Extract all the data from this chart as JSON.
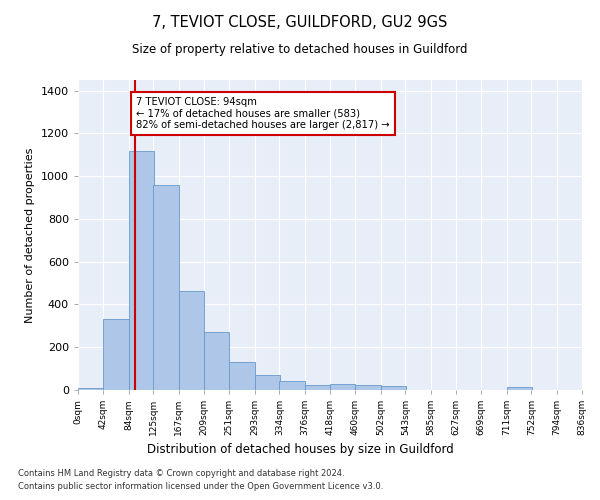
{
  "title": "7, TEVIOT CLOSE, GUILDFORD, GU2 9GS",
  "subtitle": "Size of property relative to detached houses in Guildford",
  "xlabel": "Distribution of detached houses by size in Guildford",
  "ylabel": "Number of detached properties",
  "bar_color": "#aec6e8",
  "bar_edge_color": "#6699cc",
  "background_color": "#e8eef8",
  "grid_color": "#ffffff",
  "marker_color": "#cc0000",
  "marker_value": 94,
  "annotation_text": "7 TEVIOT CLOSE: 94sqm\n← 17% of detached houses are smaller (583)\n82% of semi-detached houses are larger (2,817) →",
  "bin_edges": [
    0,
    42,
    84,
    125,
    167,
    209,
    251,
    293,
    334,
    376,
    418,
    460,
    502,
    543,
    585,
    627,
    669,
    711,
    752,
    794,
    836
  ],
  "bin_labels": [
    "0sqm",
    "42sqm",
    "84sqm",
    "125sqm",
    "167sqm",
    "209sqm",
    "251sqm",
    "293sqm",
    "334sqm",
    "376sqm",
    "418sqm",
    "460sqm",
    "502sqm",
    "543sqm",
    "585sqm",
    "627sqm",
    "669sqm",
    "711sqm",
    "752sqm",
    "794sqm",
    "836sqm"
  ],
  "bar_heights": [
    10,
    330,
    1120,
    960,
    465,
    270,
    130,
    70,
    40,
    22,
    27,
    25,
    18,
    2,
    0,
    0,
    0,
    12,
    0,
    0
  ],
  "ylim": [
    0,
    1450
  ],
  "yticks": [
    0,
    200,
    400,
    600,
    800,
    1000,
    1200,
    1400
  ],
  "footer1": "Contains HM Land Registry data © Crown copyright and database right 2024.",
  "footer2": "Contains public sector information licensed under the Open Government Licence v3.0."
}
